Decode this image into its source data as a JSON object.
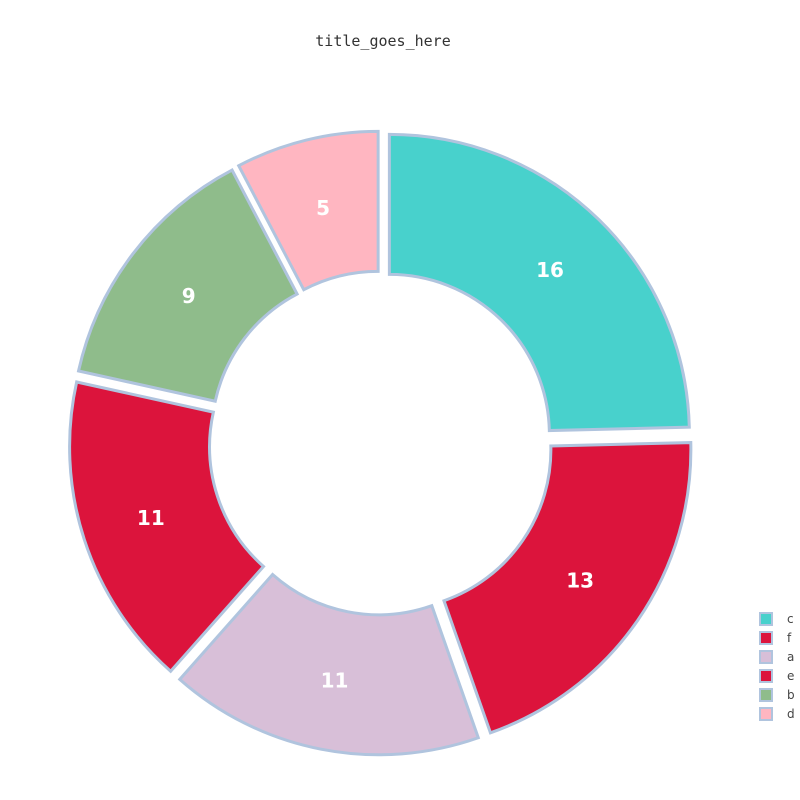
{
  "chart_data": {
    "type": "pie",
    "title": "title_goes_here",
    "hole": true,
    "slices": [
      {
        "label": "c",
        "value": 16,
        "color": "#48d1cc"
      },
      {
        "label": "f",
        "value": 13,
        "color": "#dc143c"
      },
      {
        "label": "a",
        "value": 11,
        "color": "#d8bfd8"
      },
      {
        "label": "e",
        "value": 11,
        "color": "#dc143c"
      },
      {
        "label": "b",
        "value": 9,
        "color": "#8fbc8b"
      },
      {
        "label": "d",
        "value": 5,
        "color": "#ffb6c1"
      }
    ],
    "slice_outline_color": "#b0c4de",
    "legend_position": "bottom-right"
  }
}
